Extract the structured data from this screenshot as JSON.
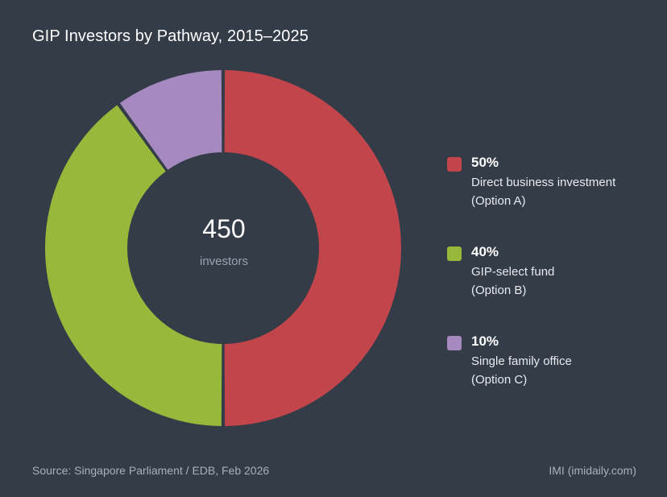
{
  "chart_data": {
    "type": "pie",
    "variant": "donut",
    "title": "GIP Investors by Pathway, 2015–2025",
    "total": {
      "value": "450",
      "label": "investors"
    },
    "slices": [
      {
        "percent": 50,
        "pct_label": "50%",
        "name": "Direct business investment",
        "option": "(Option A)",
        "color": "#c2454b"
      },
      {
        "percent": 40,
        "pct_label": "40%",
        "name": "GIP-select fund",
        "option": "(Option B)",
        "color": "#96b93b"
      },
      {
        "percent": 10,
        "pct_label": "10%",
        "name": "Single family office",
        "option": "(Option C)",
        "color": "#a589bf"
      }
    ],
    "legend_position": "right"
  },
  "footer": {
    "source": "Source: Singapore Parliament / EDB, Feb 2026",
    "credit": "IMI (imidaily.com)"
  },
  "colors": {
    "background": "#343c48",
    "text_muted": "#9aa3af"
  }
}
